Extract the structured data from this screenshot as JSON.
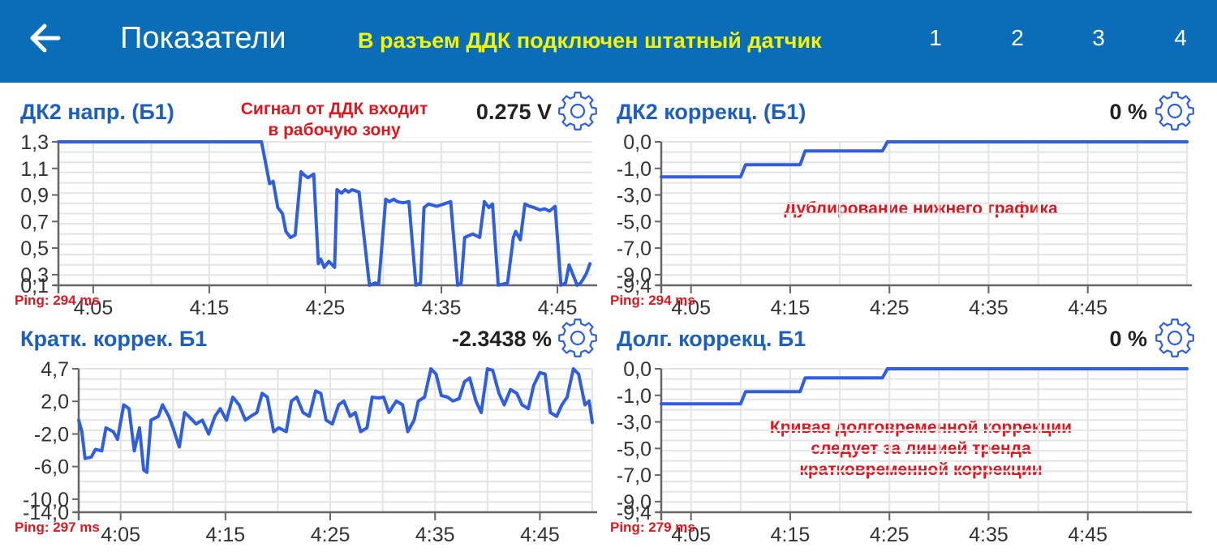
{
  "header": {
    "title": "Показатели",
    "banner": "В разъем ДДК подключен штатный датчик",
    "pages": [
      "1",
      "2",
      "3",
      "4"
    ],
    "back_icon": "arrow-left-icon"
  },
  "colors": {
    "header_bg": "#0a6db8",
    "banner": "#f5f500",
    "line": "#2f5fe0",
    "title": "#1c5fbf",
    "note": "#e0161e"
  },
  "panels": [
    {
      "title": "ДК2 напр. (Б1)",
      "value": "0.275 V",
      "note": [
        "Сигнал от ДДК входит",
        "в рабочую зону"
      ],
      "ping": "Ping: 294 ms",
      "settings_icon": "gear-icon"
    },
    {
      "title": "ДК2 коррекц. (Б1)",
      "value": "0 %",
      "note": [
        "Дублирование нижнего графика"
      ],
      "ping": "Ping: 294 ms",
      "settings_icon": "gear-icon"
    },
    {
      "title": "Кратк. коррек. Б1",
      "value": "-2.3438 %",
      "note": [],
      "ping": "Ping: 297 ms",
      "settings_icon": "gear-icon"
    },
    {
      "title": "Долг. коррекц. Б1",
      "value": "0 %",
      "note": [
        "Кривая долговременной коррекции",
        "следует за линией тренда",
        "кратковременной коррекции"
      ],
      "ping": "Ping: 279 ms",
      "settings_icon": "gear-icon"
    }
  ],
  "chart_data": [
    {
      "type": "line",
      "name": "ДК2 напр. (Б1)",
      "ylim": [
        0.1,
        1.3
      ],
      "yticks": [
        "1,3",
        "1,1",
        "0,9",
        "0,7",
        "0,5",
        "0,3",
        "0,1"
      ],
      "xlim": [
        0,
        46
      ],
      "xticks": [
        {
          "x": 3,
          "label": "4:05"
        },
        {
          "x": 13,
          "label": "4:15"
        },
        {
          "x": 23,
          "label": "4:25"
        },
        {
          "x": 33,
          "label": "4:35"
        },
        {
          "x": 43,
          "label": "4:45"
        }
      ],
      "x": [
        0,
        17.5,
        18.2,
        18.5,
        18.9,
        19.3,
        19.6,
        20.0,
        20.4,
        20.9,
        21.2,
        21.5,
        22.0,
        22.4,
        22.6,
        22.9,
        23.3,
        23.8,
        24.0,
        24.4,
        24.7,
        25.0,
        25.3,
        25.9,
        26.8,
        27.3,
        27.6,
        28.2,
        28.5,
        28.9,
        29.2,
        29.7,
        30.2,
        30.8,
        31.2,
        31.5,
        31.9,
        32.6,
        33.2,
        33.8,
        34.4,
        34.7,
        35.0,
        35.7,
        36.3,
        36.7,
        37.1,
        37.4,
        37.9,
        38.3,
        38.7,
        39.2,
        39.4,
        39.8,
        40.2,
        40.6,
        41.0,
        41.5,
        41.9,
        42.3,
        42.8,
        43.3,
        43.7,
        44.0,
        44.7,
        45.0,
        45.2,
        45.5,
        45.8
      ],
      "y": [
        1.3,
        1.3,
        0.95,
        0.97,
        0.75,
        0.7,
        0.55,
        0.5,
        0.52,
        1.05,
        1.02,
        1.0,
        1.03,
        0.28,
        0.32,
        0.25,
        0.3,
        0.25,
        0.9,
        0.87,
        0.9,
        0.88,
        0.9,
        0.88,
        0.1,
        0.12,
        0.11,
        0.82,
        0.8,
        0.82,
        0.8,
        0.79,
        0.8,
        0.1,
        0.12,
        0.75,
        0.78,
        0.76,
        0.78,
        0.8,
        0.1,
        0.12,
        0.5,
        0.53,
        0.5,
        0.8,
        0.75,
        0.78,
        0.1,
        0.11,
        0.12,
        0.5,
        0.55,
        0.48,
        0.78,
        0.76,
        0.75,
        0.73,
        0.74,
        0.72,
        0.76,
        0.1,
        0.12,
        0.27,
        0.1,
        0.12,
        0.15,
        0.2,
        0.28
      ]
    },
    {
      "type": "line",
      "name": "ДК2 коррекц. (Б1)",
      "ylim": [
        -9.4,
        0.0
      ],
      "yticks": [
        "0,0",
        "-1,0",
        "-3,0",
        "-5,0",
        "-7,0",
        "-9,0",
        "-9,4"
      ],
      "xlim": [
        0,
        53
      ],
      "xticks": [
        {
          "x": 3,
          "label": "4:05"
        },
        {
          "x": 13,
          "label": "4:15"
        },
        {
          "x": 23,
          "label": "4:25"
        },
        {
          "x": 33,
          "label": "4:35"
        },
        {
          "x": 43,
          "label": "4:45"
        }
      ],
      "x": [
        0,
        8,
        8.5,
        14,
        14.5,
        22.3,
        22.8,
        53
      ],
      "y": [
        -2.3,
        -2.3,
        -1.5,
        -1.5,
        -0.6,
        -0.6,
        0.0,
        0.0
      ]
    },
    {
      "type": "line",
      "name": "Кратк. коррек. Б1",
      "ylim": [
        -14.0,
        4.7
      ],
      "yticks": [
        "4,7",
        "2,0",
        "-2,0",
        "-6,0",
        "-10,0",
        "-14,0"
      ],
      "xlim": [
        0,
        49
      ],
      "xticks": [
        {
          "x": 4,
          "label": "4:05"
        },
        {
          "x": 14,
          "label": "4:15"
        },
        {
          "x": 24,
          "label": "4:25"
        },
        {
          "x": 34,
          "label": "4:35"
        },
        {
          "x": 44,
          "label": "4:45"
        }
      ],
      "x": [
        0,
        0.3,
        0.6,
        1.2,
        1.6,
        2.2,
        2.6,
        3.3,
        3.7,
        4.3,
        4.8,
        5.3,
        5.8,
        6.2,
        6.5,
        6.9,
        7.6,
        8.0,
        8.6,
        9.0,
        9.6,
        10.1,
        10.5,
        11.2,
        11.8,
        12.4,
        13.0,
        13.5,
        14.1,
        14.7,
        15.3,
        15.9,
        16.4,
        17.0,
        17.5,
        18.0,
        18.6,
        19.1,
        19.8,
        20.3,
        20.8,
        21.4,
        22.0,
        22.6,
        23.1,
        23.6,
        24.2,
        24.8,
        25.3,
        25.9,
        26.4,
        26.9,
        27.5,
        28.0,
        28.6,
        29.1,
        29.6,
        30.3,
        30.9,
        31.4,
        32.0,
        32.4,
        33.0,
        33.6,
        34.1,
        34.6,
        35.2,
        35.7,
        36.3,
        36.8,
        37.3,
        37.9,
        38.4,
        39.0,
        39.5,
        40.1,
        40.6,
        41.2,
        41.8,
        42.3,
        42.9,
        43.4,
        44.0,
        44.5,
        45.0,
        45.6,
        46.1,
        46.6,
        47.2,
        47.7,
        48.3,
        48.7,
        49.0
      ],
      "y": [
        -2.0,
        -3.5,
        -7.0,
        -6.8,
        -5.8,
        -6.0,
        -3.0,
        -3.5,
        -4.5,
        0.0,
        -0.5,
        -6.0,
        -3.0,
        -8.5,
        -8.8,
        -2.0,
        -1.5,
        0.0,
        -1.5,
        -3.0,
        -5.5,
        -1.0,
        -1.5,
        -2.5,
        -2.0,
        -3.8,
        -1.5,
        -0.5,
        -2.0,
        1.0,
        0.0,
        -2.0,
        -1.5,
        -1.0,
        1.5,
        1.0,
        -3.5,
        -3.0,
        -3.5,
        0.5,
        1.0,
        -1.0,
        -1.5,
        1.8,
        1.5,
        -2.0,
        -2.5,
        0.0,
        0.5,
        -1.5,
        -1.0,
        -3.5,
        -3.0,
        1.0,
        0.9,
        1.0,
        -1.0,
        0.5,
        0.0,
        -3.5,
        -2.0,
        0.5,
        1.0,
        4.7,
        4.0,
        1.2,
        1.0,
        0.5,
        0.8,
        3.0,
        3.5,
        0.5,
        -1.0,
        4.7,
        4.5,
        1.5,
        0.0,
        2.0,
        1.5,
        0.0,
        -0.5,
        2.5,
        4.2,
        4.0,
        -1.0,
        -1.5,
        0.0,
        1.0,
        4.7,
        4.0,
        0.0,
        0.5,
        -2.3
      ]
    },
    {
      "type": "line",
      "name": "Долг. коррекц. Б1",
      "ylim": [
        -9.4,
        0.0
      ],
      "yticks": [
        "0,0",
        "-1,0",
        "-3,0",
        "-5,0",
        "-7,0",
        "-9,0",
        "-9,4"
      ],
      "xlim": [
        0,
        53
      ],
      "xticks": [
        {
          "x": 3,
          "label": "4:05"
        },
        {
          "x": 13,
          "label": "4:15"
        },
        {
          "x": 23,
          "label": "4:25"
        },
        {
          "x": 33,
          "label": "4:35"
        },
        {
          "x": 43,
          "label": "4:45"
        }
      ],
      "x": [
        0,
        8,
        8.5,
        14,
        14.5,
        22.3,
        22.8,
        53
      ],
      "y": [
        -2.3,
        -2.3,
        -1.5,
        -1.5,
        -0.6,
        -0.6,
        0.0,
        0.0
      ]
    }
  ]
}
